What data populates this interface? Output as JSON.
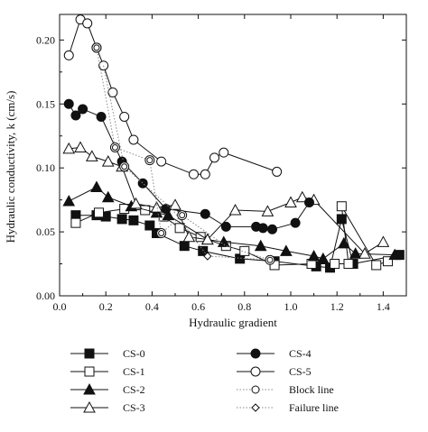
{
  "chart_data": {
    "type": "scatter",
    "xlabel": "Hydraulic gradient",
    "ylabel": "Hydraulic conductivity, k (cm/s)",
    "xlim": [
      0,
      1.5
    ],
    "ylim": [
      0,
      0.22
    ],
    "x_ticks": [
      "0.0",
      "0.2",
      "0.4",
      "0.6",
      "0.8",
      "1.0",
      "1.2",
      "1.4"
    ],
    "y_ticks": [
      "0.00",
      "0.05",
      "0.10",
      "0.15",
      "0.20"
    ],
    "grid": false,
    "legend_position": "bottom",
    "series": [
      {
        "name": "CS-0",
        "marker": "square-filled",
        "points": [
          [
            0.07,
            0.063
          ],
          [
            0.16,
            0.063
          ],
          [
            0.2,
            0.062
          ],
          [
            0.27,
            0.06
          ],
          [
            0.32,
            0.059
          ],
          [
            0.39,
            0.055
          ],
          [
            0.42,
            0.049
          ],
          [
            0.54,
            0.039
          ],
          [
            0.62,
            0.035
          ],
          [
            0.78,
            0.029
          ],
          [
            0.93,
            0.027
          ],
          [
            1.11,
            0.023
          ],
          [
            1.17,
            0.022
          ],
          [
            1.22,
            0.06
          ],
          [
            1.27,
            0.025
          ],
          [
            1.47,
            0.032
          ]
        ]
      },
      {
        "name": "CS-1",
        "marker": "square-open",
        "points": [
          [
            0.07,
            0.057
          ],
          [
            0.17,
            0.065
          ],
          [
            0.28,
            0.068
          ],
          [
            0.37,
            0.067
          ],
          [
            0.45,
            0.062
          ],
          [
            0.52,
            0.053
          ],
          [
            0.61,
            0.046
          ],
          [
            0.72,
            0.039
          ],
          [
            0.8,
            0.035
          ],
          [
            0.93,
            0.024
          ],
          [
            1.09,
            0.025
          ],
          [
            1.19,
            0.025
          ],
          [
            1.25,
            0.025
          ],
          [
            1.22,
            0.07
          ],
          [
            1.37,
            0.024
          ],
          [
            1.42,
            0.027
          ]
        ]
      },
      {
        "name": "CS-2",
        "marker": "triangle-filled",
        "points": [
          [
            0.04,
            0.074
          ],
          [
            0.16,
            0.085
          ],
          [
            0.21,
            0.077
          ],
          [
            0.31,
            0.07
          ],
          [
            0.42,
            0.065
          ],
          [
            0.47,
            0.063
          ],
          [
            0.64,
            0.044
          ],
          [
            0.71,
            0.042
          ],
          [
            0.87,
            0.039
          ],
          [
            0.98,
            0.035
          ],
          [
            1.1,
            0.031
          ],
          [
            1.14,
            0.029
          ],
          [
            1.23,
            0.041
          ],
          [
            1.28,
            0.033
          ],
          [
            1.45,
            0.032
          ]
        ]
      },
      {
        "name": "CS-3",
        "marker": "triangle-open",
        "points": [
          [
            0.04,
            0.115
          ],
          [
            0.09,
            0.116
          ],
          [
            0.14,
            0.109
          ],
          [
            0.21,
            0.105
          ],
          [
            0.27,
            0.101
          ],
          [
            0.33,
            0.072
          ],
          [
            0.42,
            0.069
          ],
          [
            0.5,
            0.071
          ],
          [
            0.56,
            0.046
          ],
          [
            0.64,
            0.044
          ],
          [
            0.76,
            0.067
          ],
          [
            0.9,
            0.066
          ],
          [
            1.0,
            0.073
          ],
          [
            1.05,
            0.077
          ],
          [
            1.1,
            0.075
          ],
          [
            1.32,
            0.033
          ],
          [
            1.4,
            0.042
          ]
        ]
      },
      {
        "name": "CS-4",
        "marker": "circle-filled",
        "points": [
          [
            0.04,
            0.15
          ],
          [
            0.07,
            0.141
          ],
          [
            0.1,
            0.146
          ],
          [
            0.18,
            0.14
          ],
          [
            0.27,
            0.105
          ],
          [
            0.36,
            0.088
          ],
          [
            0.46,
            0.068
          ],
          [
            0.63,
            0.064
          ],
          [
            0.72,
            0.054
          ],
          [
            0.85,
            0.054
          ],
          [
            0.88,
            0.053
          ],
          [
            0.92,
            0.052
          ],
          [
            1.02,
            0.057
          ],
          [
            1.08,
            0.073
          ]
        ]
      },
      {
        "name": "CS-5",
        "marker": "circle-open",
        "points": [
          [
            0.04,
            0.188
          ],
          [
            0.09,
            0.216
          ],
          [
            0.12,
            0.213
          ],
          [
            0.16,
            0.194
          ],
          [
            0.19,
            0.18
          ],
          [
            0.23,
            0.159
          ],
          [
            0.28,
            0.14
          ],
          [
            0.32,
            0.122
          ],
          [
            0.44,
            0.105
          ],
          [
            0.58,
            0.095
          ],
          [
            0.63,
            0.095
          ],
          [
            0.67,
            0.108
          ],
          [
            0.71,
            0.112
          ],
          [
            0.94,
            0.097
          ]
        ]
      },
      {
        "name": "Block line",
        "marker": "dotted-line",
        "points": [
          [
            0.16,
            0.194
          ],
          [
            0.24,
            0.116
          ],
          [
            0.39,
            0.106
          ],
          [
            0.44,
            0.049
          ],
          [
            0.53,
            0.063
          ],
          [
            0.72,
            0.039
          ],
          [
            0.91,
            0.028
          ]
        ]
      },
      {
        "name": "Failure line",
        "marker": "dotted-line",
        "points": [
          [
            0.19,
            0.18
          ],
          [
            0.28,
            0.101
          ],
          [
            0.49,
            0.067
          ],
          [
            0.64,
            0.031
          ],
          [
            0.92,
            0.028
          ]
        ]
      }
    ],
    "special_markers": [
      {
        "type": "bullseye",
        "x": 0.16,
        "y": 0.194
      },
      {
        "type": "bullseye",
        "x": 0.24,
        "y": 0.116
      },
      {
        "type": "bullseye",
        "x": 0.39,
        "y": 0.106
      },
      {
        "type": "bullseye",
        "x": 0.44,
        "y": 0.049
      },
      {
        "type": "bullseye",
        "x": 0.53,
        "y": 0.063
      },
      {
        "type": "bullseye",
        "x": 0.91,
        "y": 0.028
      },
      {
        "type": "bullseye",
        "x": 0.28,
        "y": 0.101
      },
      {
        "type": "diamond",
        "x": 0.64,
        "y": 0.031
      }
    ]
  }
}
